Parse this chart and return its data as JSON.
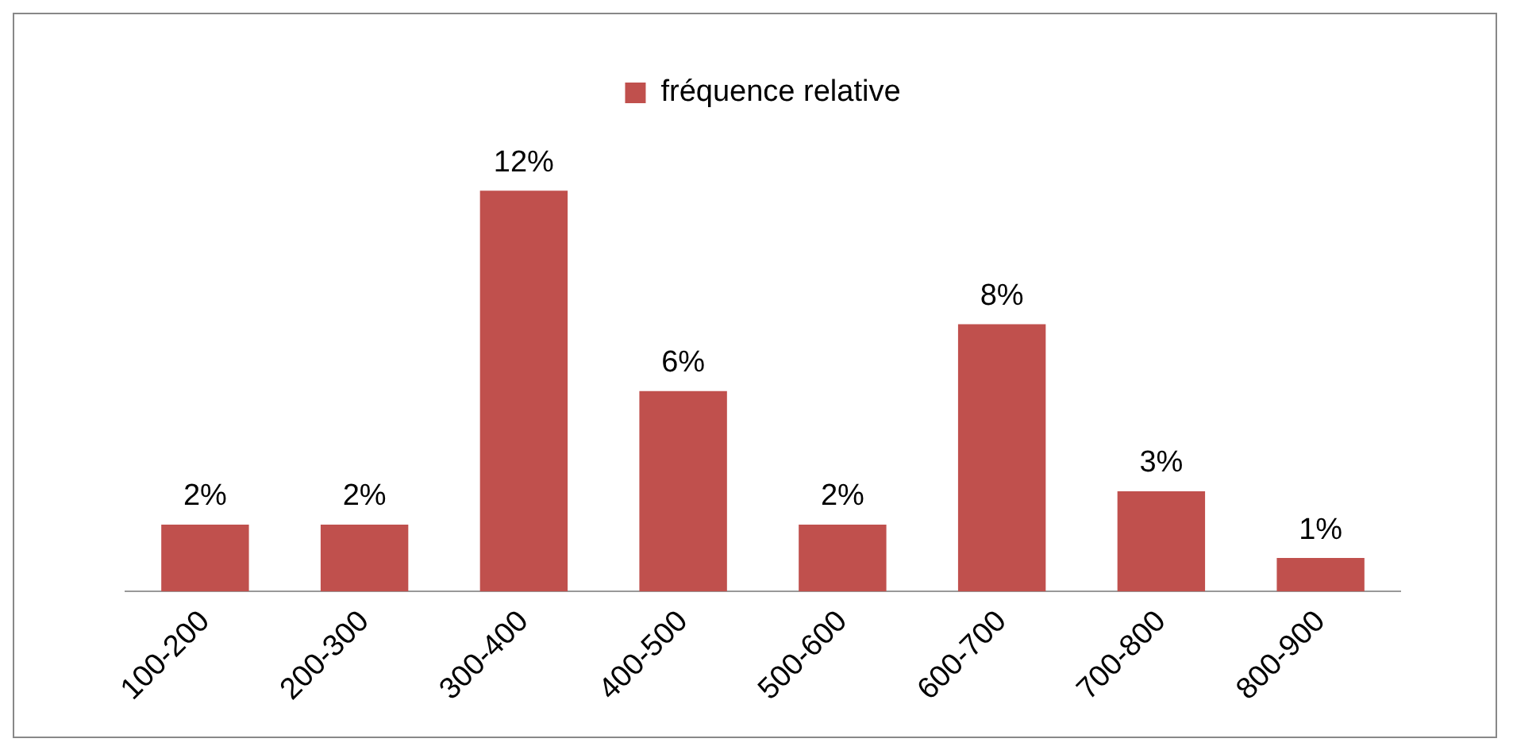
{
  "chart_data": {
    "type": "bar",
    "categories": [
      "100-200",
      "200-300",
      "300-400",
      "400-500",
      "500-600",
      "600-700",
      "700-800",
      "800-900"
    ],
    "series": [
      {
        "name": "fréquence relative",
        "color": "#c0504d",
        "values": [
          2,
          2,
          12,
          6,
          2,
          8,
          3,
          1
        ],
        "value_labels": [
          "2%",
          "2%",
          "12%",
          "6%",
          "2%",
          "8%",
          "3%",
          "1%"
        ]
      }
    ],
    "legend": "top",
    "grid": false
  }
}
